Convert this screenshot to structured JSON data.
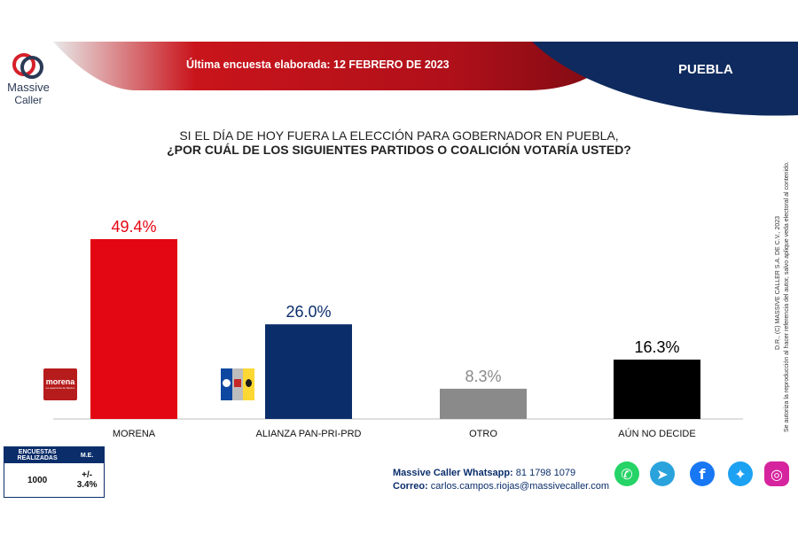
{
  "brand": {
    "line1": "Massive",
    "line2": "Caller"
  },
  "header": {
    "survey_date": "Última encuesta elaborada: 12 FEBRERO DE 2023",
    "region": "PUEBLA"
  },
  "question": {
    "line1": "SI EL DÍA DE HOY FUERA LA ELECCIÓN PARA GOBERNADOR EN PUEBLA,",
    "line2": "¿POR CUÁL DE LOS SIGUIENTES PARTIDOS O COALICIÓN VOTARÍA USTED?"
  },
  "chart_data": {
    "type": "bar",
    "categories": [
      "MORENA",
      "ALIANZA PAN-PRI-PRD",
      "OTRO",
      "AÚN NO DECIDE"
    ],
    "values": [
      49.4,
      26.0,
      8.3,
      16.3
    ],
    "value_labels": [
      "49.4%",
      "26.0%",
      "8.3%",
      "16.3%"
    ],
    "colors": [
      "#e30613",
      "#0b2e6b",
      "#8a8a8a",
      "#000000"
    ],
    "label_colors": [
      "#e30613",
      "#0b2e6b",
      "#8a8a8a",
      "#000000"
    ],
    "ylim": [
      0,
      55
    ],
    "grid": false
  },
  "logos": {
    "morena": "morena",
    "morena_sub": "La esperanza de México"
  },
  "stats": {
    "col1_header": "ENCUESTAS REALIZADAS",
    "col2_header": "M.E.",
    "surveys": "1000",
    "margin": "+/- 3.4%"
  },
  "contact": {
    "whatsapp_label": "Massive Caller Whatsapp:",
    "whatsapp_number": "81 1798 1079",
    "email_label": "Correo:",
    "email": "carlos.campos.riojas@massivecaller.com"
  },
  "copyright": {
    "line1": "D.R., (C) MASSIVE CALLER S.A. DE C.V., 2023",
    "line2": "Se autoriza la reproducción al hacer referencia del autor, salvo aplique veda electoral al contenido."
  },
  "social_icons": [
    "whatsapp-icon",
    "telegram-icon",
    "facebook-icon",
    "twitter-icon",
    "instagram-icon"
  ]
}
